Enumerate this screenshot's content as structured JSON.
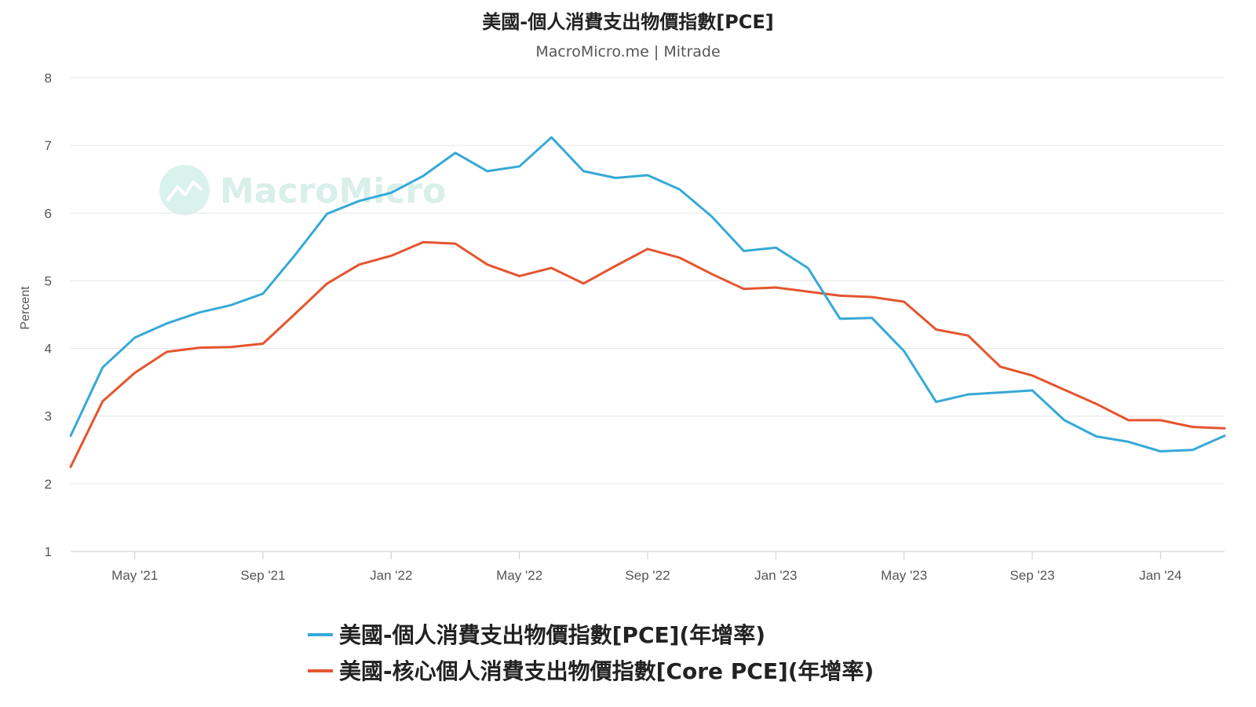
{
  "chart_data": {
    "type": "line",
    "title": "美國-個人消費支出物價指數[PCE]",
    "subtitle": "MacroMicro.me | Mitrade",
    "ylabel": "Percent",
    "xlabel": "",
    "ylim": [
      1,
      8
    ],
    "yticks": [
      1,
      2,
      3,
      4,
      5,
      6,
      7,
      8
    ],
    "grid": true,
    "legend_position": "bottom",
    "watermark": "MacroMicro",
    "x": [
      "2021-03",
      "2021-04",
      "2021-05",
      "2021-06",
      "2021-07",
      "2021-08",
      "2021-09",
      "2021-10",
      "2021-11",
      "2021-12",
      "2022-01",
      "2022-02",
      "2022-03",
      "2022-04",
      "2022-05",
      "2022-06",
      "2022-07",
      "2022-08",
      "2022-09",
      "2022-10",
      "2022-11",
      "2022-12",
      "2023-01",
      "2023-02",
      "2023-03",
      "2023-04",
      "2023-05",
      "2023-06",
      "2023-07",
      "2023-08",
      "2023-09",
      "2023-10",
      "2023-11",
      "2023-12",
      "2024-01",
      "2024-02",
      "2024-03"
    ],
    "xtick_labels": [
      {
        "x": "2021-05",
        "label": "May '21"
      },
      {
        "x": "2021-09",
        "label": "Sep '21"
      },
      {
        "x": "2022-01",
        "label": "Jan '22"
      },
      {
        "x": "2022-05",
        "label": "May '22"
      },
      {
        "x": "2022-09",
        "label": "Sep '22"
      },
      {
        "x": "2023-01",
        "label": "Jan '23"
      },
      {
        "x": "2023-05",
        "label": "May '23"
      },
      {
        "x": "2023-09",
        "label": "Sep '23"
      },
      {
        "x": "2024-01",
        "label": "Jan '24"
      }
    ],
    "series": [
      {
        "name": "美國-個人消費支出物價指數[PCE](年增率)",
        "color": "#36a9d6",
        "values": [
          2.71,
          3.72,
          4.16,
          4.37,
          4.53,
          4.64,
          4.81,
          5.38,
          5.99,
          6.18,
          6.3,
          6.55,
          6.89,
          6.62,
          6.69,
          7.12,
          6.62,
          6.52,
          6.56,
          6.35,
          5.95,
          5.44,
          5.49,
          5.19,
          4.44,
          4.45,
          3.96,
          3.21,
          3.32,
          3.35,
          3.38,
          2.94,
          2.7,
          2.62,
          2.48,
          2.5,
          2.71
        ]
      },
      {
        "name": "美國-核心個人消費支出物價指數[Core PCE](年增率)",
        "color": "#e4552f",
        "values": [
          2.25,
          3.22,
          3.64,
          3.95,
          4.01,
          4.02,
          4.07,
          4.51,
          4.96,
          5.24,
          5.37,
          5.57,
          5.55,
          5.24,
          5.07,
          5.19,
          4.96,
          5.22,
          5.47,
          5.34,
          5.1,
          4.88,
          4.9,
          4.84,
          4.78,
          4.76,
          4.69,
          4.28,
          4.19,
          3.73,
          3.6,
          3.39,
          3.18,
          2.94,
          2.94,
          2.84,
          2.82
        ]
      }
    ]
  }
}
